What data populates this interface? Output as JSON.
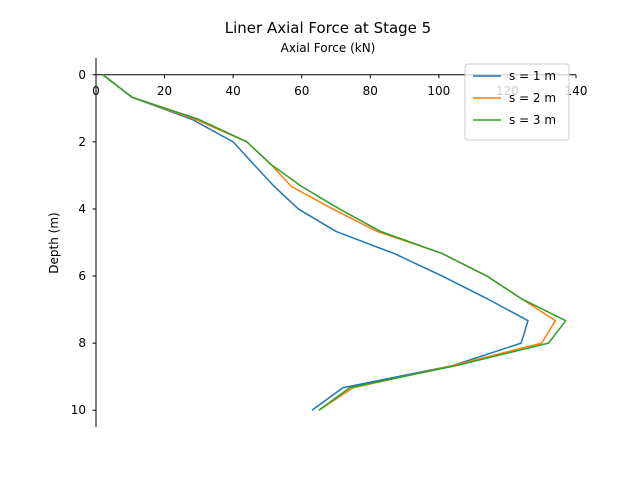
{
  "chart_data": {
    "type": "line",
    "title": "Liner Axial Force at Stage 5",
    "xlabel": "Axial Force (kN)",
    "ylabel": "Depth (m)",
    "xlim": [
      0,
      140
    ],
    "ylim": [
      10.5,
      -0.5
    ],
    "y_inverted": true,
    "x_axis_position": "top",
    "grid": false,
    "legend_position": "top-right",
    "x_ticks": [
      "0",
      "20",
      "40",
      "60",
      "80",
      "100",
      "120",
      "140"
    ],
    "y_ticks": [
      "0",
      "2",
      "4",
      "6",
      "8",
      "10"
    ],
    "series": [
      {
        "name": "s = 1 m",
        "color": "#1f77b4",
        "points": [
          [
            2,
            0
          ],
          [
            10.5,
            0.67
          ],
          [
            28,
            1.33
          ],
          [
            40,
            2
          ],
          [
            46,
            2.67
          ],
          [
            52,
            3.33
          ],
          [
            59,
            4
          ],
          [
            70,
            4.67
          ],
          [
            87,
            5.33
          ],
          [
            101,
            6
          ],
          [
            114,
            6.67
          ],
          [
            126,
            7.33
          ],
          [
            124,
            8
          ],
          [
            104,
            8.67
          ],
          [
            72,
            9.33
          ],
          [
            63,
            10
          ]
        ]
      },
      {
        "name": "s = 2 m",
        "color": "#ff7f0e",
        "points": [
          [
            2,
            0
          ],
          [
            10.5,
            0.67
          ],
          [
            29,
            1.33
          ],
          [
            44,
            2
          ],
          [
            51,
            2.67
          ],
          [
            57,
            3.33
          ],
          [
            69,
            4
          ],
          [
            82,
            4.67
          ],
          [
            101,
            5.33
          ],
          [
            114,
            6
          ],
          [
            124,
            6.67
          ],
          [
            134,
            7.33
          ],
          [
            130,
            8
          ],
          [
            104,
            8.67
          ],
          [
            75,
            9.33
          ],
          [
            65,
            10
          ]
        ]
      },
      {
        "name": "s = 3 m",
        "color": "#2ca02c",
        "points": [
          [
            2,
            0
          ],
          [
            10.5,
            0.67
          ],
          [
            30,
            1.33
          ],
          [
            44,
            2
          ],
          [
            51,
            2.67
          ],
          [
            60,
            3.33
          ],
          [
            71,
            4
          ],
          [
            83,
            4.67
          ],
          [
            101,
            5.33
          ],
          [
            114,
            6
          ],
          [
            124,
            6.67
          ],
          [
            137,
            7.33
          ],
          [
            132,
            8
          ],
          [
            105,
            8.67
          ],
          [
            74,
            9.33
          ],
          [
            65,
            10
          ]
        ]
      }
    ]
  }
}
